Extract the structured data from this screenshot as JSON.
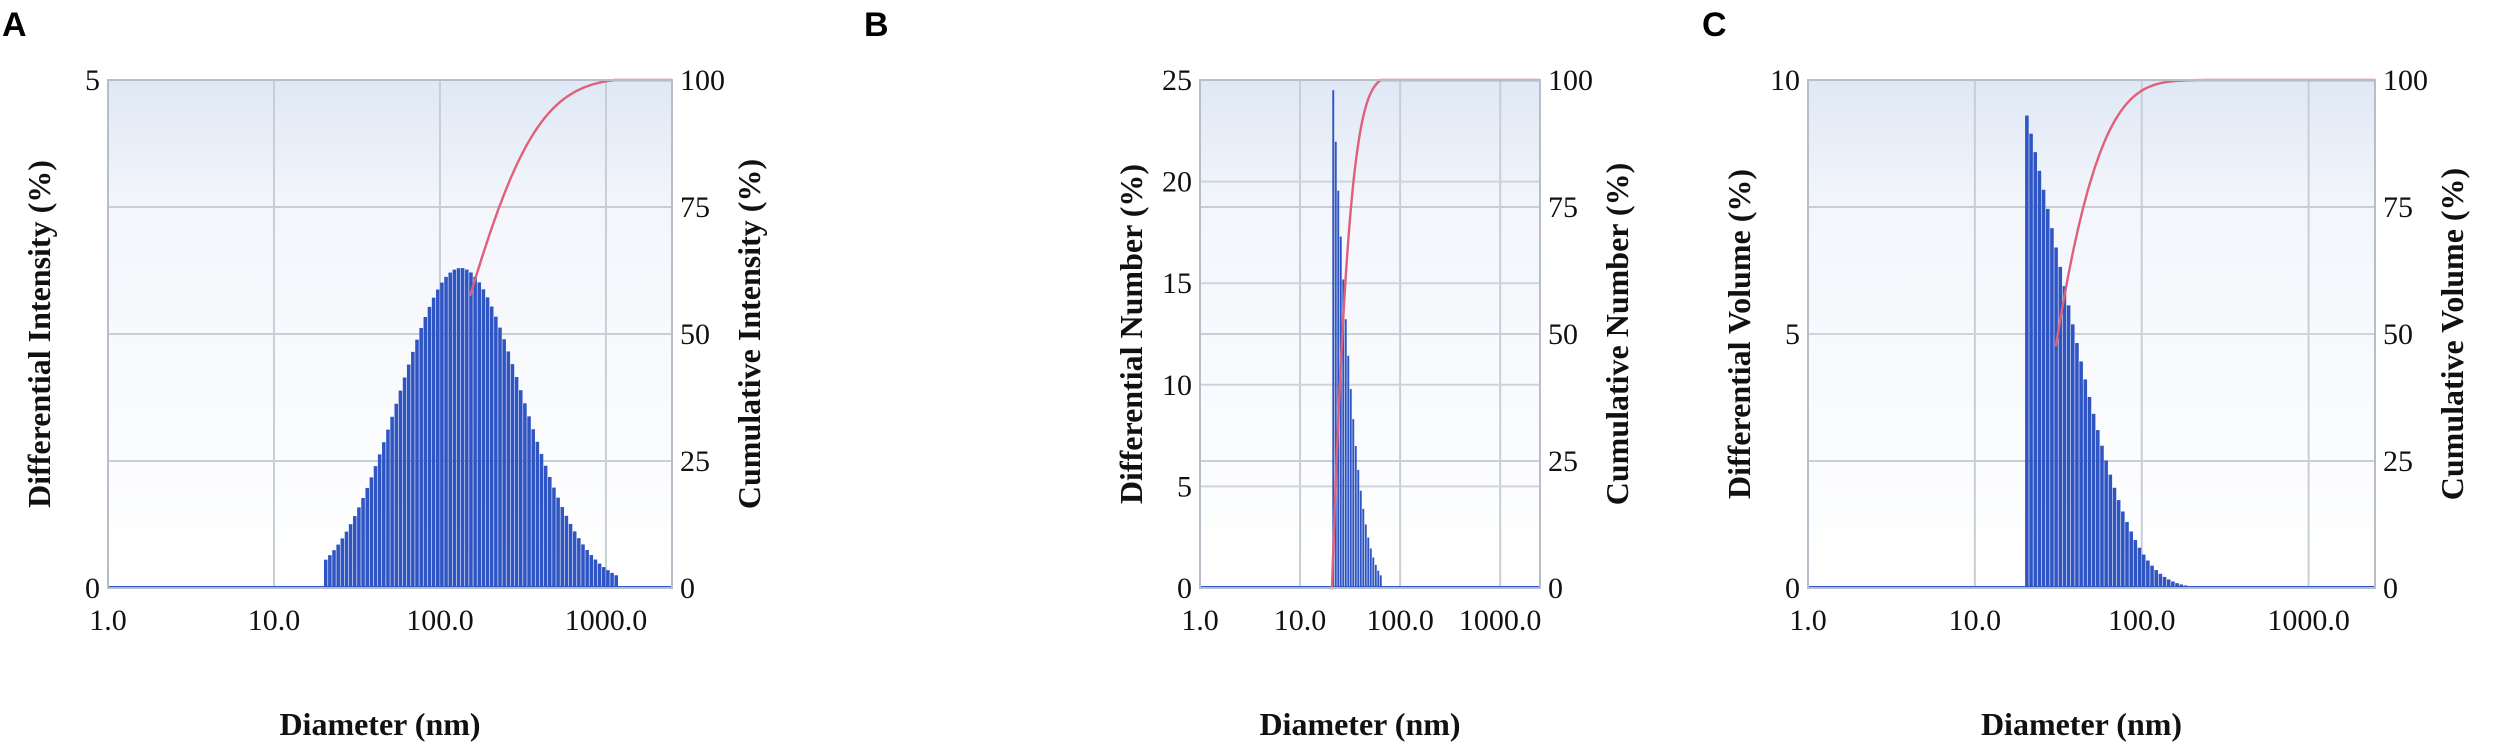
{
  "chart_data": [
    {
      "panel": "A",
      "type": "bar",
      "xlabel": "Diameter (nm)",
      "ylabel": "Differential Intensity (%)",
      "y2label": "Cumulative Intensity (%)",
      "x_scale": "log",
      "xlim": [
        1,
        2500
      ],
      "xticks": [
        "1.0",
        "10.0",
        "100.0",
        "1000.0"
      ],
      "ylim": [
        0,
        5
      ],
      "yticks": [
        "0",
        "5"
      ],
      "y2lim": [
        0,
        100
      ],
      "y2ticks": [
        "0",
        "25",
        "50",
        "75",
        "100"
      ],
      "grid": true,
      "colors": {
        "bars": "#2f54c3",
        "cumulative": "#e0607a",
        "background": "#eef3fa"
      },
      "distribution": {
        "shape": "lognormal",
        "start": 20,
        "end": 1150,
        "peak_x": 130,
        "peak_y": 3.15,
        "sigma": 0.85
      },
      "cumulative": {
        "start": 20,
        "end": 1150,
        "label_from": 150,
        "median": 130
      }
    },
    {
      "panel": "B",
      "type": "bar",
      "xlabel": "Diameter (nm)",
      "ylabel": "Differential Number (%)",
      "y2label": "Cumulative Number (%)",
      "x_scale": "log",
      "xlim": [
        1,
        2500
      ],
      "xticks": [
        "1.0",
        "10.0",
        "100.0",
        "1000.0"
      ],
      "ylim": [
        0,
        25
      ],
      "yticks": [
        "0",
        "5",
        "10",
        "15",
        "20",
        "25"
      ],
      "y2lim": [
        0,
        100
      ],
      "y2ticks": [
        "0",
        "25",
        "50",
        "75",
        "100"
      ],
      "grid": true,
      "colors": {
        "bars": "#2f54c3",
        "cumulative": "#e0607a",
        "background": "#eef3fa"
      },
      "distribution": {
        "shape": "decay",
        "start": 21,
        "end": 65,
        "peak_x": 21,
        "peak_y": 24.5,
        "decay": 0.088
      },
      "cumulative": {
        "start": 19,
        "end": 2500,
        "label_from": 19
      }
    },
    {
      "panel": "C",
      "type": "bar",
      "xlabel": "Diameter (nm)",
      "ylabel": "Differential Volume (%)",
      "y2label": "Cumulative Volume (%)",
      "x_scale": "log",
      "xlim": [
        1,
        2500
      ],
      "xticks": [
        "1.0",
        "10.0",
        "100.0",
        "1000.0"
      ],
      "ylim": [
        0,
        10
      ],
      "yticks": [
        "0",
        "5",
        "10"
      ],
      "y2lim": [
        0,
        100
      ],
      "y2ticks": [
        "0",
        "25",
        "50",
        "75",
        "100"
      ],
      "grid": true,
      "colors": {
        "bars": "#2f54c3",
        "cumulative": "#e0607a",
        "background": "#eef3fa"
      },
      "distribution": {
        "shape": "decay",
        "start": 20,
        "end": 330,
        "peak_x": 20,
        "peak_y": 9.3,
        "decay": 0.033
      },
      "cumulative": {
        "start": 18,
        "end": 2500,
        "label_from": 30
      }
    }
  ]
}
